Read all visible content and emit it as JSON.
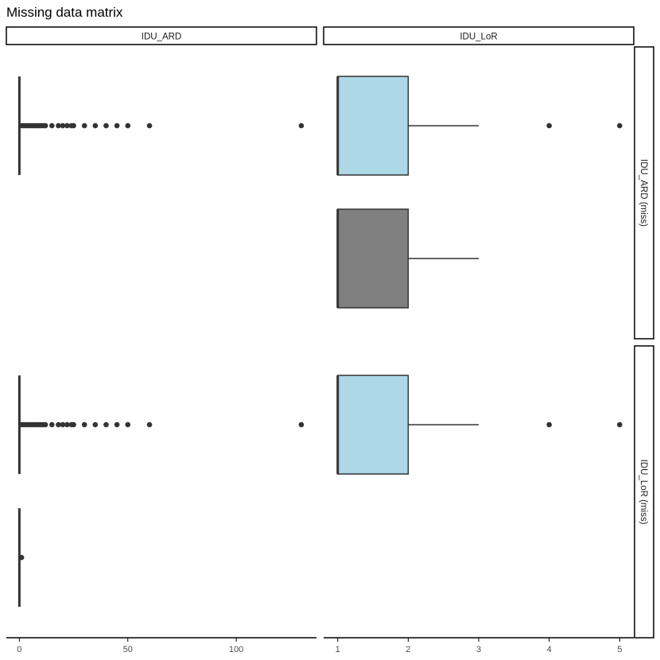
{
  "title": "Missing data matrix",
  "colors": {
    "observed_fill": "#ADD8E6",
    "missing_fill": "#808080",
    "box_stroke": "#333333",
    "point": "#333333",
    "axis": "#000000",
    "tick_text": "#4D4D4D"
  },
  "chart_data": {
    "type": "boxplot",
    "title": "Missing data matrix",
    "orientation": "horizontal",
    "facet_columns": [
      "IDU_ARD",
      "IDU_LoR"
    ],
    "facet_rows": [
      "IDU_ARD (miss)",
      "IDU_LoR (miss)"
    ],
    "groups_within_row": [
      "FALSE",
      "TRUE"
    ],
    "x_axes": {
      "IDU_ARD": {
        "ticks": [
          0,
          50,
          100
        ],
        "xlim": [
          -6,
          137
        ]
      },
      "IDU_LoR": {
        "ticks": [
          1,
          2,
          3,
          4,
          5
        ],
        "xlim": [
          0.8,
          5.2
        ]
      }
    },
    "panels": [
      {
        "column": "IDU_ARD",
        "row": "IDU_ARD (miss)",
        "boxes": [
          {
            "group": "FALSE",
            "fill": "observed",
            "min": 0,
            "q1": 0,
            "median": 0,
            "q3": 0,
            "max": 0,
            "outliers": [
              1,
              2,
              3,
              4,
              5,
              6,
              7,
              8,
              9,
              10,
              11,
              12,
              15,
              18,
              20,
              22,
              24,
              25,
              30,
              35,
              40,
              45,
              50,
              60,
              130
            ]
          }
        ]
      },
      {
        "column": "IDU_LoR",
        "row": "IDU_ARD (miss)",
        "boxes": [
          {
            "group": "FALSE",
            "fill": "observed",
            "min": 1,
            "q1": 1,
            "median": 1,
            "q3": 2,
            "max": 3,
            "outliers": [
              4,
              5
            ]
          },
          {
            "group": "TRUE",
            "fill": "missing",
            "min": 1,
            "q1": 1,
            "median": 1,
            "q3": 2,
            "max": 3,
            "outliers": []
          }
        ]
      },
      {
        "column": "IDU_ARD",
        "row": "IDU_LoR (miss)",
        "boxes": [
          {
            "group": "FALSE",
            "fill": "observed",
            "min": 0,
            "q1": 0,
            "median": 0,
            "q3": 0,
            "max": 0,
            "outliers": [
              1,
              2,
              3,
              4,
              5,
              6,
              7,
              8,
              9,
              10,
              11,
              12,
              15,
              18,
              20,
              22,
              24,
              25,
              30,
              35,
              40,
              45,
              50,
              60,
              130
            ]
          },
          {
            "group": "TRUE",
            "fill": "missing",
            "min": 0,
            "q1": 0,
            "median": 0,
            "q3": 0,
            "max": 0,
            "outliers": [
              1
            ]
          }
        ]
      },
      {
        "column": "IDU_LoR",
        "row": "IDU_LoR (miss)",
        "boxes": [
          {
            "group": "FALSE",
            "fill": "observed",
            "min": 1,
            "q1": 1,
            "median": 1,
            "q3": 2,
            "max": 3,
            "outliers": [
              4,
              5
            ]
          }
        ]
      }
    ]
  }
}
